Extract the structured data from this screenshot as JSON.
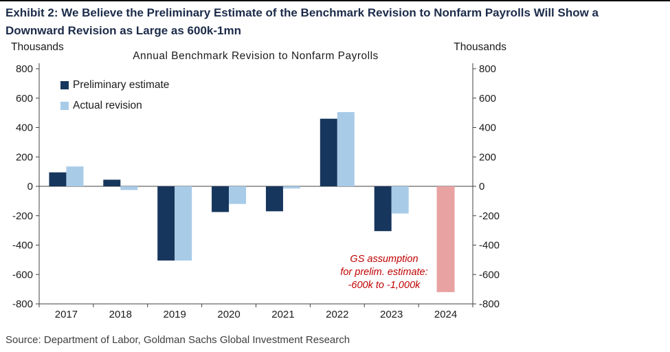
{
  "header": {
    "title_lines": [
      "Exhibit 2: We Believe the Preliminary Estimate of the Benchmark Revision to Nonfarm Payrolls Will Show a",
      "Downward Revision as Large as 600k-1mn"
    ]
  },
  "chart_data": {
    "type": "bar",
    "title": "Annual Benchmark Revision to Nonfarm Payrolls",
    "y_axis_label_left": "Thousands",
    "y_axis_label_right": "Thousands",
    "ylim": [
      -800,
      800
    ],
    "y_ticks": [
      800,
      600,
      400,
      200,
      0,
      -200,
      -400,
      -600,
      -800
    ],
    "categories": [
      "2017",
      "2018",
      "2019",
      "2020",
      "2021",
      "2022",
      "2023",
      "2024"
    ],
    "series": [
      {
        "name": "Preliminary estimate",
        "color": "#17365d",
        "values": [
          95,
          45,
          -505,
          -175,
          -170,
          460,
          -305,
          null
        ]
      },
      {
        "name": "Actual revision",
        "color": "#a8cbe8",
        "values": [
          135,
          -25,
          -505,
          -120,
          -15,
          505,
          -185,
          null
        ]
      },
      {
        "name": "GS assumption",
        "color": "#e9a2a2",
        "values": [
          null,
          null,
          null,
          null,
          null,
          null,
          null,
          -720
        ]
      }
    ],
    "legend_position": "top-left",
    "grid": false,
    "annotation": {
      "text_lines": [
        "GS assumption",
        "for prelim. estimate:",
        "-600k to -1,000k"
      ],
      "color": "#c00000"
    }
  },
  "footer": {
    "source": "Source: Department of Labor, Goldman Sachs Global Investment Research"
  }
}
